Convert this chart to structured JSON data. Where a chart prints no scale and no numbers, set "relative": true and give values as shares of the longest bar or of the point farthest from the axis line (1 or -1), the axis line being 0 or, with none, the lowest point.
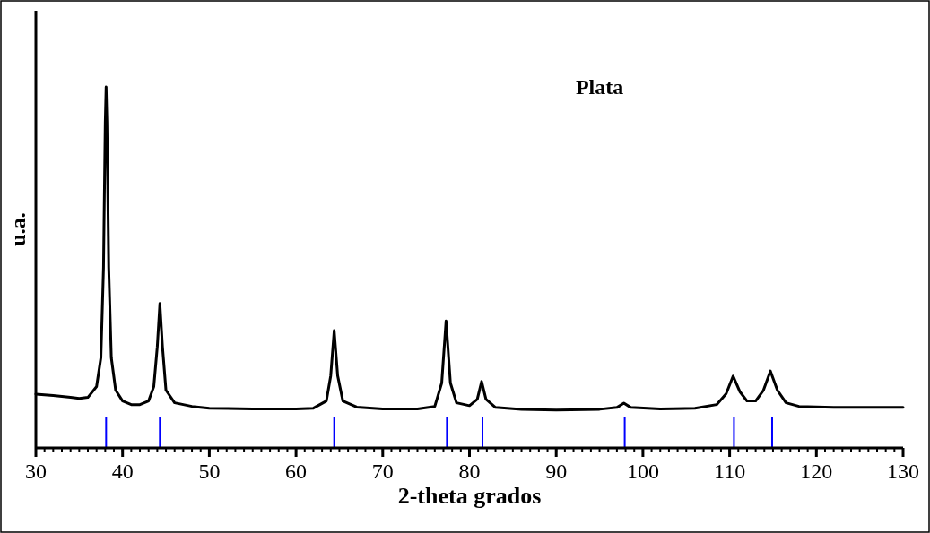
{
  "chart_data": {
    "type": "line",
    "title": "Plata",
    "xlabel": "2-theta grados",
    "ylabel": "u.a.",
    "relative": true,
    "marker": "none",
    "line_style": "solid",
    "grid": false,
    "xlim": [
      30,
      130
    ],
    "xticks": [
      30,
      40,
      50,
      60,
      70,
      80,
      90,
      100,
      110,
      120,
      130
    ],
    "series": [
      {
        "color": "#000000",
        "x": [
          30,
          32,
          34,
          35,
          36,
          37,
          37.5,
          37.8,
          38.0,
          38.1,
          38.2,
          38.4,
          38.7,
          39.2,
          40,
          41,
          42,
          43,
          43.6,
          44.0,
          44.3,
          44.6,
          45,
          46,
          48,
          50,
          55,
          60,
          62,
          63.5,
          64.0,
          64.4,
          64.8,
          65.4,
          67,
          70,
          74,
          76,
          76.8,
          77.3,
          77.8,
          78.5,
          80,
          80.9,
          81.4,
          81.9,
          83,
          86,
          90,
          95,
          97,
          97.8,
          98.6,
          102,
          106,
          108.5,
          109.6,
          110.4,
          111.2,
          112,
          113,
          113.9,
          114.7,
          115.5,
          116.5,
          118,
          122,
          126,
          130
        ],
        "values": [
          0.149,
          0.145,
          0.14,
          0.137,
          0.14,
          0.17,
          0.25,
          0.5,
          0.9,
          1.0,
          0.9,
          0.5,
          0.25,
          0.16,
          0.13,
          0.12,
          0.12,
          0.13,
          0.17,
          0.28,
          0.4,
          0.28,
          0.16,
          0.125,
          0.115,
          0.11,
          0.108,
          0.108,
          0.11,
          0.13,
          0.2,
          0.325,
          0.2,
          0.13,
          0.113,
          0.108,
          0.108,
          0.115,
          0.18,
          0.352,
          0.18,
          0.125,
          0.117,
          0.135,
          0.184,
          0.135,
          0.112,
          0.107,
          0.105,
          0.107,
          0.112,
          0.124,
          0.112,
          0.108,
          0.11,
          0.12,
          0.15,
          0.199,
          0.155,
          0.13,
          0.13,
          0.16,
          0.213,
          0.16,
          0.125,
          0.115,
          0.112,
          0.112,
          0.112
        ]
      },
      {
        "type": "bar",
        "color": "#0000ff",
        "x": [
          38.1,
          44.3,
          64.4,
          77.4,
          81.5,
          97.9,
          110.5,
          114.9
        ],
        "values": [
          0.086,
          0.086,
          0.086,
          0.086,
          0.086,
          0.086,
          0.086,
          0.086
        ]
      }
    ]
  }
}
